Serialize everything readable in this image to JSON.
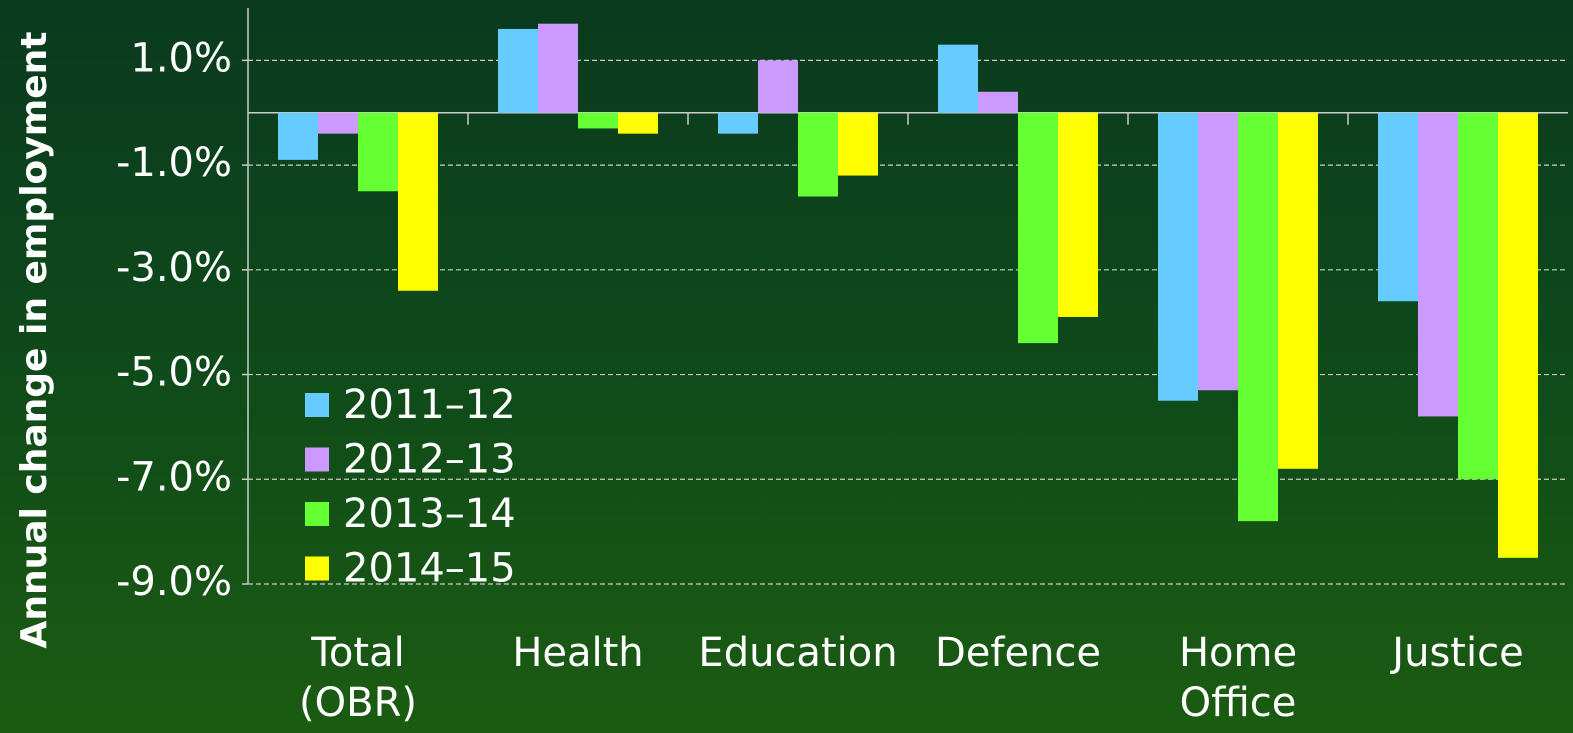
{
  "chart_data": {
    "type": "bar",
    "y_label": "Annual change in employment",
    "categories": [
      "Total (OBR)",
      "Health",
      "Education",
      "Defence",
      "Home Office",
      "Justice"
    ],
    "series": [
      {
        "name": "2011–12",
        "color": "#66ccff",
        "values": [
          -0.9,
          1.6,
          -0.4,
          1.3,
          -5.5,
          -3.6
        ]
      },
      {
        "name": "2012–13",
        "color": "#cc99ff",
        "values": [
          -0.4,
          1.7,
          1.0,
          0.4,
          -5.3,
          -5.8
        ]
      },
      {
        "name": "2013–14",
        "color": "#66ff33",
        "values": [
          -1.5,
          -0.3,
          -1.6,
          -4.4,
          -7.8,
          -7.0
        ]
      },
      {
        "name": "2014–15",
        "color": "#ffff00",
        "values": [
          -3.4,
          -0.4,
          -1.2,
          -3.9,
          -6.8,
          -8.5
        ]
      }
    ],
    "ylim": [
      -9,
      2
    ],
    "yticks": [
      {
        "value": 1,
        "label": "1.0%"
      },
      {
        "value": -1,
        "label": "-1.0%"
      },
      {
        "value": -3,
        "label": "-3.0%"
      },
      {
        "value": -5,
        "label": "-5.0%"
      },
      {
        "value": -7,
        "label": "-7.0%"
      },
      {
        "value": -9,
        "label": "-9.0%"
      }
    ],
    "grid": true,
    "legend": "lower left"
  }
}
